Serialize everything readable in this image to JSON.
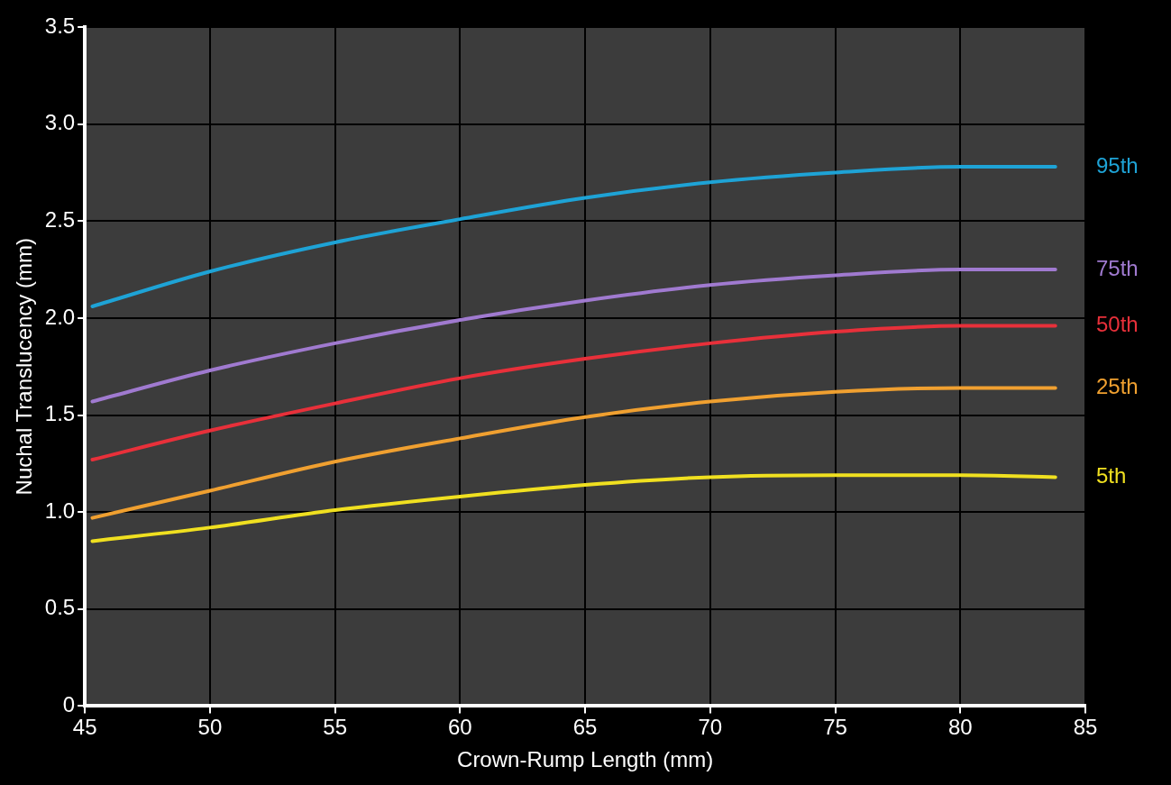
{
  "chart_data": {
    "type": "line",
    "xlabel": "Crown-Rump Length (mm)",
    "ylabel": "Nuchal Translucency (mm)",
    "xlim": [
      45,
      85
    ],
    "xticks": [
      45,
      50,
      55,
      60,
      65,
      70,
      75,
      80,
      85
    ],
    "ylim": [
      0,
      3.5
    ],
    "yticks": [
      0,
      0.5,
      {
        "value": 1,
        "label": "1.0"
      },
      1.5,
      {
        "value": 2,
        "label": "2.0"
      },
      2.5,
      {
        "value": 3,
        "label": "3.0"
      },
      3.5
    ],
    "grid": true,
    "legend": false,
    "marker": "none",
    "line_style": "solid",
    "x": [
      45.3,
      50,
      55,
      60,
      65,
      70,
      75,
      80,
      83.8
    ],
    "series": [
      {
        "name": "95th",
        "color": "#1ea3d6",
        "values": [
          2.06,
          2.24,
          2.39,
          2.51,
          2.62,
          2.7,
          2.75,
          2.78,
          2.78
        ]
      },
      {
        "name": "75th",
        "color": "#a07ad0",
        "values": [
          1.57,
          1.73,
          1.87,
          1.99,
          2.09,
          2.17,
          2.22,
          2.25,
          2.25
        ]
      },
      {
        "name": "50th",
        "color": "#e8303a",
        "values": [
          1.27,
          1.42,
          1.56,
          1.69,
          1.79,
          1.87,
          1.93,
          1.96,
          1.96
        ]
      },
      {
        "name": "25th",
        "color": "#f0a030",
        "values": [
          0.97,
          1.11,
          1.26,
          1.38,
          1.49,
          1.57,
          1.62,
          1.64,
          1.64
        ]
      },
      {
        "name": "5th",
        "color": "#f0e020",
        "values": [
          0.85,
          0.92,
          1.01,
          1.08,
          1.14,
          1.18,
          1.19,
          1.19,
          1.18
        ]
      }
    ]
  }
}
